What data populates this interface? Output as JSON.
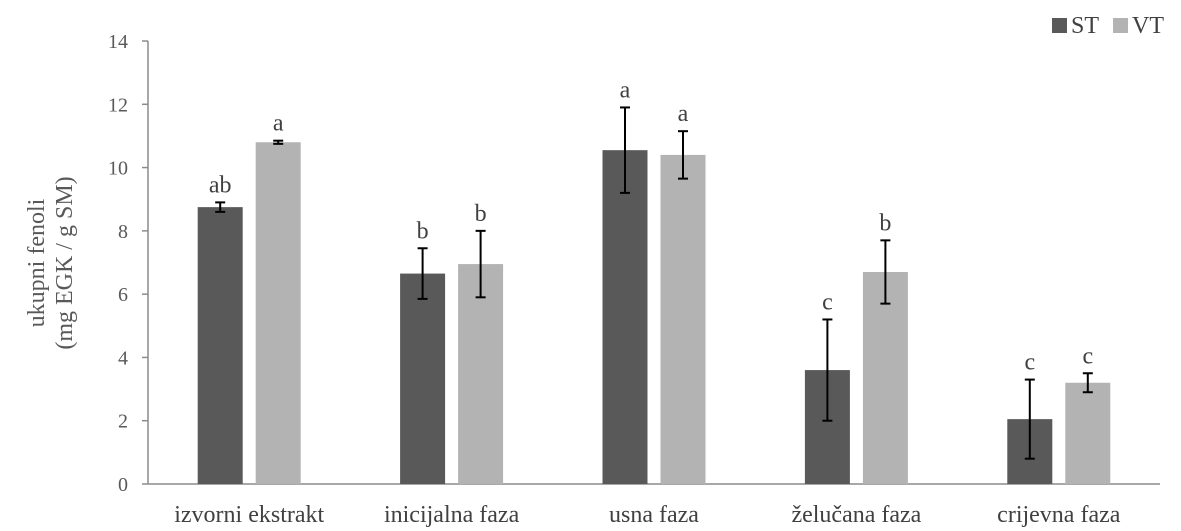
{
  "chart_data": {
    "type": "bar",
    "title": "",
    "xlabel": "",
    "ylabel": [
      "ukupni fenoli",
      "(mg EGK / g SM)"
    ],
    "ylim": [
      0,
      14
    ],
    "yticks": [
      0,
      2,
      4,
      6,
      8,
      10,
      12,
      14
    ],
    "grid": false,
    "legend_position": "top-right",
    "categories": [
      "izvorni ekstrakt",
      "inicijalna faza",
      "usna faza",
      "želučana faza",
      "crijevna faza"
    ],
    "series": [
      {
        "name": "ST",
        "color": "#595959",
        "values": [
          8.75,
          6.65,
          10.55,
          3.6,
          2.05
        ],
        "errors": [
          0.15,
          0.8,
          1.35,
          1.6,
          1.25
        ],
        "labels": [
          "ab",
          "b",
          "a",
          "c",
          "c"
        ]
      },
      {
        "name": "VT",
        "color": "#b3b3b3",
        "values": [
          10.8,
          6.95,
          10.4,
          6.7,
          3.2
        ],
        "errors": [
          0.05,
          1.05,
          0.75,
          1.0,
          0.3
        ],
        "labels": [
          "a",
          "b",
          "a",
          "b",
          "c"
        ]
      }
    ]
  }
}
